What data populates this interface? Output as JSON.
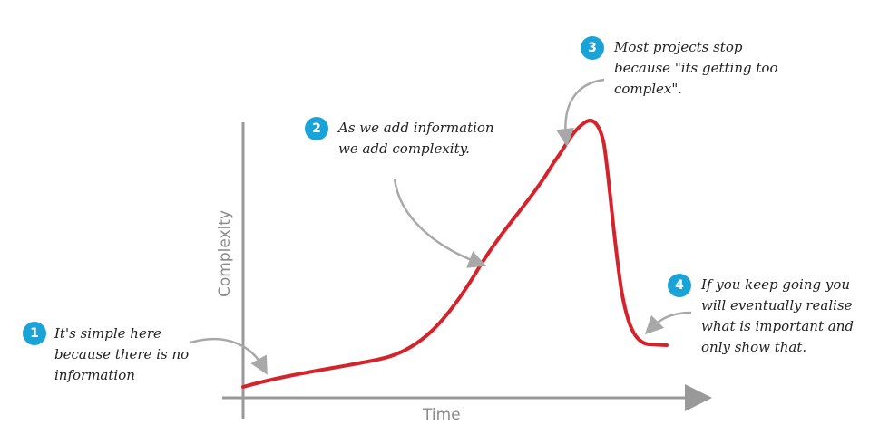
{
  "axes": {
    "x_label": "Time",
    "y_label": "Complexity"
  },
  "annotations": [
    {
      "number": "1",
      "text": "It's simple here\nbecause there is no\ninformation"
    },
    {
      "number": "2",
      "text": "As we add information\nwe add complexity."
    },
    {
      "number": "3",
      "text": "Most projects stop\nbecause \"its getting too\ncomplex\"."
    },
    {
      "number": "4",
      "text": "If you keep going you\nwill eventually realise\nwhat is important and\nonly show that."
    }
  ],
  "colors": {
    "curve": "#d5232b",
    "badge": "#1ba3d8",
    "axis": "#999999",
    "arrow": "#a8a8a8"
  }
}
